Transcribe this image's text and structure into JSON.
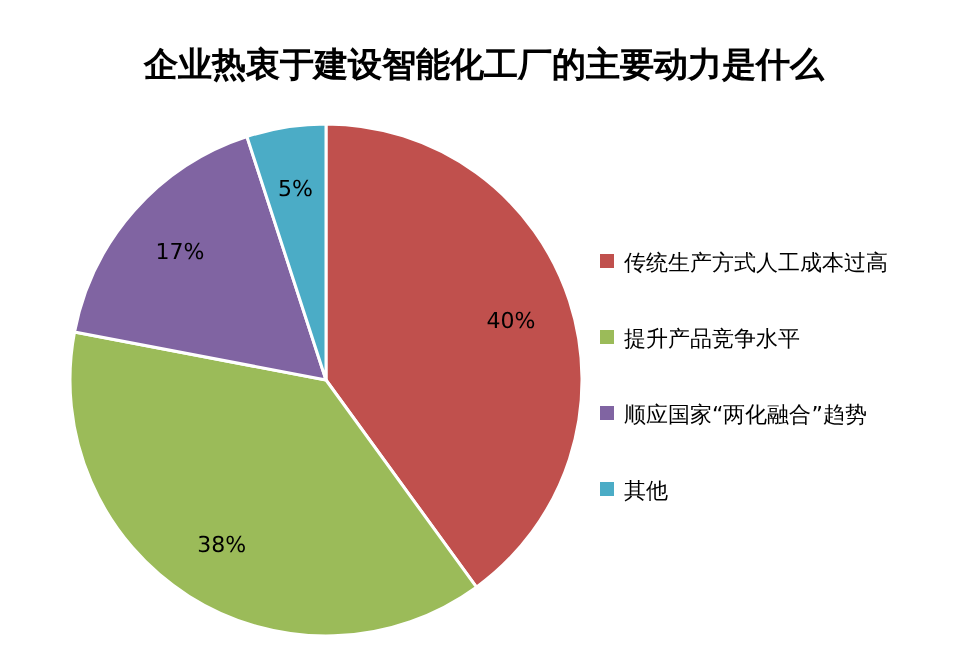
{
  "chart_data": {
    "type": "pie",
    "title": "企业热衷于建设智能化工厂的主要动力是什么",
    "categories": [
      "传统生产方式人工成本过高",
      "提升产品竞争水平",
      "顺应国家“两化融合”趋势",
      "其他"
    ],
    "values": [
      40,
      38,
      17,
      5
    ],
    "colors": [
      "#c0504d",
      "#9bbb59",
      "#8064a2",
      "#4bacc6"
    ],
    "value_labels": [
      "40%",
      "38%",
      "17%",
      "5%"
    ],
    "legend": "right"
  }
}
